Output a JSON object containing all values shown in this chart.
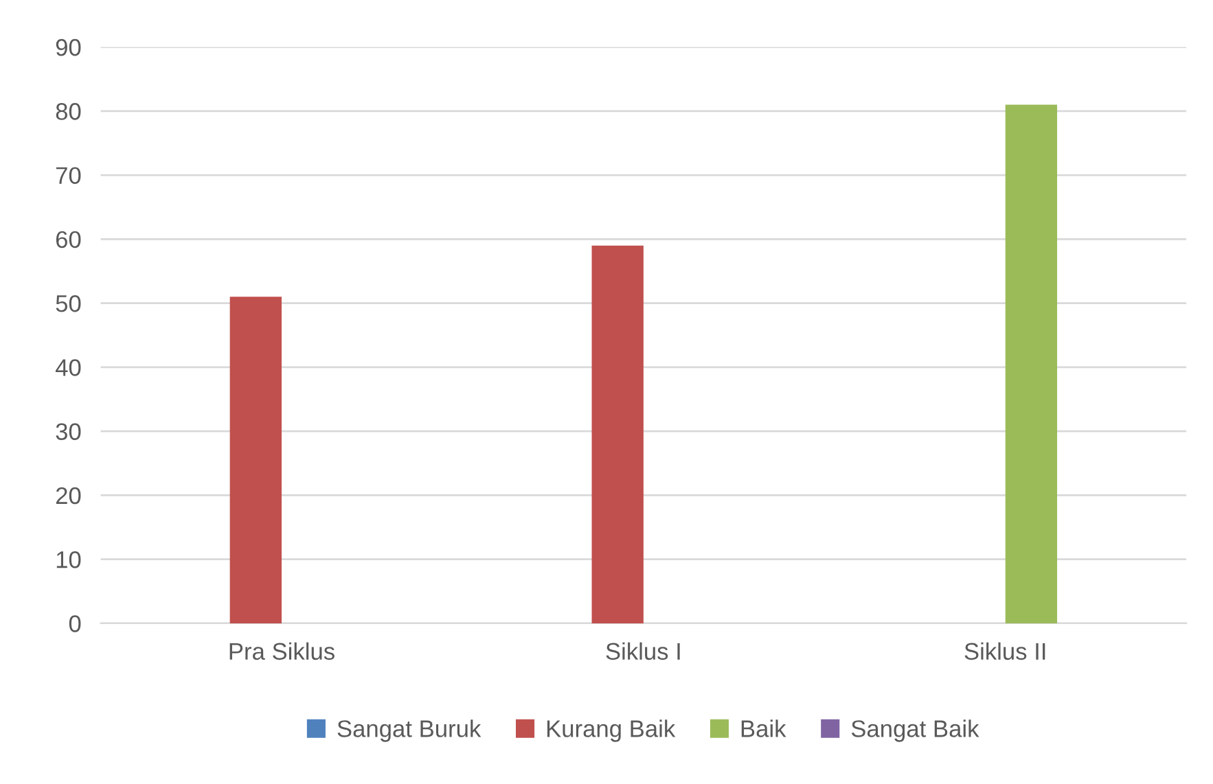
{
  "chart_data": {
    "type": "bar",
    "categories": [
      "Pra Siklus",
      "Siklus I",
      "Siklus II"
    ],
    "series": [
      {
        "name": "Sangat Buruk",
        "color": "#4f81bd",
        "values": [
          null,
          null,
          null
        ]
      },
      {
        "name": "Kurang Baik",
        "color": "#c0504d",
        "values": [
          51,
          59,
          null
        ]
      },
      {
        "name": "Baik",
        "color": "#9bbb59",
        "values": [
          null,
          null,
          81
        ]
      },
      {
        "name": "Sangat Baik",
        "color": "#8064a2",
        "values": [
          null,
          null,
          null
        ]
      }
    ],
    "ylim": [
      0,
      90
    ],
    "yticks": [
      0,
      10,
      20,
      30,
      40,
      50,
      60,
      70,
      80,
      90
    ],
    "grid": "y",
    "legend": "bottom"
  }
}
